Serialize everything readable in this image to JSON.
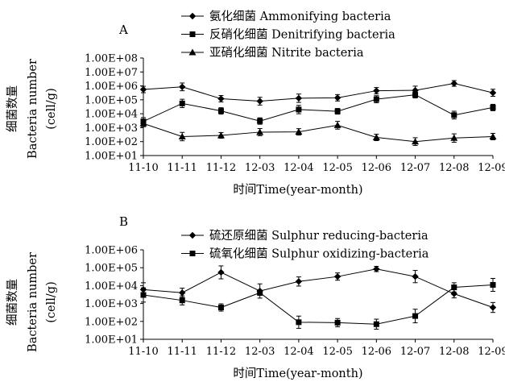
{
  "chart_data": [
    {
      "type": "line",
      "panel_label": "A",
      "y_scale": "log",
      "ylim": [
        10,
        100000000
      ],
      "y_tick_labels": [
        "1.00E+01",
        "1.00E+02",
        "1.00E+03",
        "1.00E+04",
        "1.00E+05",
        "1.00E+06",
        "1.00E+07",
        "1.00E+08"
      ],
      "categories": [
        "11-10",
        "11-11",
        "11-12",
        "12-03",
        "12-04",
        "12-05",
        "12-06",
        "12-07",
        "12-08",
        "12-09"
      ],
      "xlabel": "时间Time(year-month)",
      "ylabel": [
        "细菌数量",
        "Bacteria number",
        "(cell/g)"
      ],
      "legend_position": "top-right",
      "error_bars": true,
      "series": [
        {
          "name": "氨化细菌 Ammonifying bacteria",
          "marker": "diamond",
          "values": [
            550000,
            850000,
            120000,
            80000,
            130000,
            140000,
            450000,
            480000,
            1500000,
            320000
          ]
        },
        {
          "name": "反硝化细菌 Denitrifying bacteria",
          "marker": "square",
          "values": [
            2800,
            55000,
            16000,
            3000,
            20000,
            15000,
            110000,
            230000,
            8000,
            28000
          ]
        },
        {
          "name": "亚硝化细菌 Nitrite bacteria",
          "marker": "triangle",
          "values": [
            2000,
            230,
            280,
            480,
            500,
            1500,
            200,
            100,
            180,
            230
          ]
        }
      ]
    },
    {
      "type": "line",
      "panel_label": "B",
      "y_scale": "log",
      "ylim": [
        10,
        1000000
      ],
      "y_tick_labels": [
        "1.00E+01",
        "1.00E+02",
        "1.00E+03",
        "1.00E+04",
        "1.00E+05",
        "1.00E+06"
      ],
      "categories": [
        "11-10",
        "11-11",
        "11-12",
        "12-03",
        "12-04",
        "12-05",
        "12-06",
        "12-07",
        "12-08",
        "12-09"
      ],
      "xlabel": "时间Time(year-month)",
      "ylabel": [
        "细菌数量",
        "Bacteria number",
        "(cell/g)"
      ],
      "legend_position": "top-right",
      "error_bars": true,
      "series": [
        {
          "name": "硫还原细菌 Sulphur reducing-bacteria",
          "marker": "diamond",
          "values": [
            6000,
            4000,
            55000,
            5000,
            17000,
            32000,
            85000,
            32000,
            3500,
            600
          ]
        },
        {
          "name": "硫氧化细菌 Sulphur oxidizing-bacteria",
          "marker": "square",
          "values": [
            3000,
            1500,
            600,
            4000,
            90,
            85,
            70,
            200,
            8000,
            11000
          ]
        }
      ]
    }
  ]
}
